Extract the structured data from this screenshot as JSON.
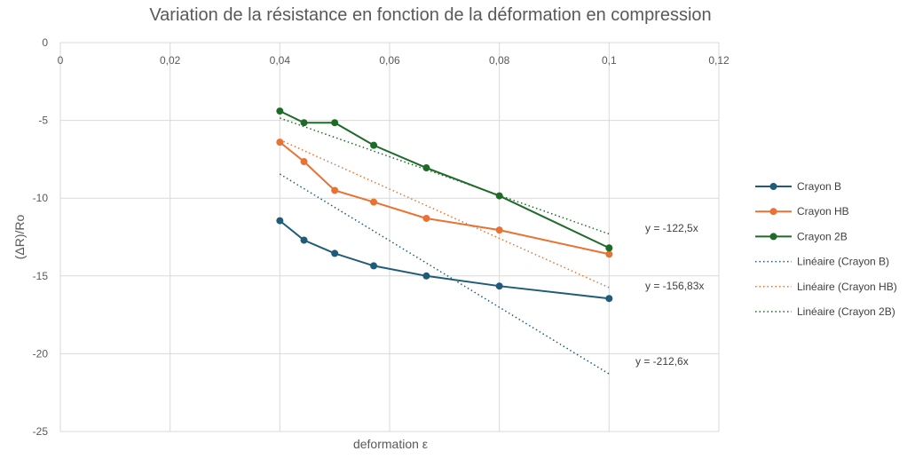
{
  "chart_data": {
    "type": "line",
    "title": "Variation de la résistance en fonction de la déformation en compression",
    "xlabel": "deformation ε",
    "ylabel": "(ΔR)/Ro",
    "xlim": [
      0,
      0.12
    ],
    "ylim": [
      -25,
      0
    ],
    "x_ticks": [
      "0",
      "0,02",
      "0,04",
      "0,06",
      "0,08",
      "0,1",
      "0,12"
    ],
    "x_tick_values": [
      0,
      0.02,
      0.04,
      0.06,
      0.08,
      0.1,
      0.12
    ],
    "y_ticks": [
      "0",
      "-5",
      "-10",
      "-15",
      "-20",
      "-25"
    ],
    "y_tick_values": [
      0,
      -5,
      -10,
      -15,
      -20,
      -25
    ],
    "grid": true,
    "legend_position": "right",
    "series": [
      {
        "name": "Crayon B",
        "color": "#1f5c7a",
        "x": [
          0.04,
          0.0444,
          0.05,
          0.0571,
          0.0667,
          0.08,
          0.1
        ],
        "y": [
          -11.45,
          -12.7,
          -13.55,
          -14.35,
          -15.0,
          -15.65,
          -16.45
        ]
      },
      {
        "name": "Crayon HB",
        "color": "#e97132",
        "x": [
          0.04,
          0.0444,
          0.05,
          0.0571,
          0.0667,
          0.08,
          0.1
        ],
        "y": [
          -6.4,
          -7.65,
          -9.5,
          -10.25,
          -11.3,
          -12.05,
          -13.6
        ]
      },
      {
        "name": "Crayon 2B",
        "color": "#1e6b28",
        "x": [
          0.04,
          0.0444,
          0.05,
          0.0571,
          0.0667,
          0.08,
          0.1
        ],
        "y": [
          -4.4,
          -5.15,
          -5.15,
          -6.6,
          -8.05,
          -9.85,
          -13.2
        ]
      }
    ],
    "trendlines": [
      {
        "name": "Linéaire (Crayon B)",
        "color": "#1f5c7a",
        "x": [
          0.04,
          0.1
        ],
        "y": [
          -8.45,
          -21.3
        ],
        "equation": "y = -212,6x"
      },
      {
        "name": "Linéaire (Crayon HB)",
        "color": "#e97132",
        "x": [
          0.04,
          0.1
        ],
        "y": [
          -6.25,
          -15.75
        ],
        "equation": "y = -156,83x"
      },
      {
        "name": "Linéaire (Crayon 2B)",
        "color": "#1e6b28",
        "x": [
          0.04,
          0.1
        ],
        "y": [
          -4.85,
          -12.3
        ],
        "equation": "y = -122,5x"
      }
    ]
  }
}
